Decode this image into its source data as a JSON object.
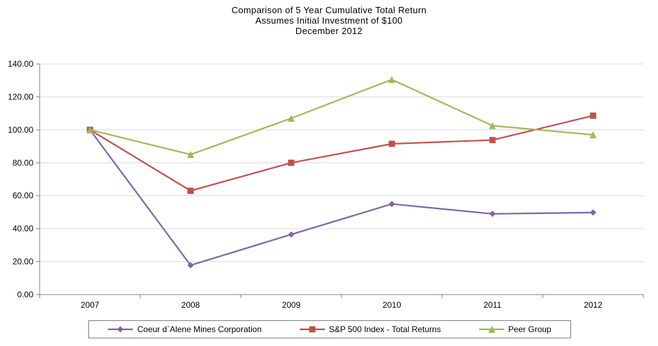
{
  "title": {
    "line1": "Comparison  of 5 Year Cumulative  Total Return",
    "line2": "Assumes Initial Investment  of $100",
    "line3": "December  2012"
  },
  "chart_data": {
    "type": "line",
    "x": [
      "2007",
      "2008",
      "2009",
      "2010",
      "2011",
      "2012"
    ],
    "series": [
      {
        "name": "Coeur d`Alene Mines Corporation",
        "color": "#8064A2",
        "marker": "diamond",
        "values": [
          100,
          17.8,
          36.5,
          55.0,
          49.0,
          49.8
        ]
      },
      {
        "name": "S&P 500 Index - Total Returns",
        "color": "#C0504D",
        "marker": "square",
        "values": [
          100,
          63.0,
          80.0,
          91.5,
          93.8,
          108.6
        ]
      },
      {
        "name": "Peer Group",
        "color": "#9BBB59",
        "marker": "triangle",
        "values": [
          100,
          85.0,
          107.0,
          130.5,
          102.5,
          97.0
        ]
      }
    ],
    "ylim": [
      0,
      140
    ],
    "ytick_step": 20,
    "ytick_labels": [
      "0.00",
      "20.00",
      "40.00",
      "60.00",
      "80.00",
      "100.00",
      "120.00",
      "140.00"
    ],
    "xlabel": "",
    "ylabel": "",
    "grid": true,
    "legend_position": "bottom",
    "colors": {
      "axis": "#7f7f7f",
      "gridline": "#d9d9d9",
      "text": "#000000"
    }
  }
}
